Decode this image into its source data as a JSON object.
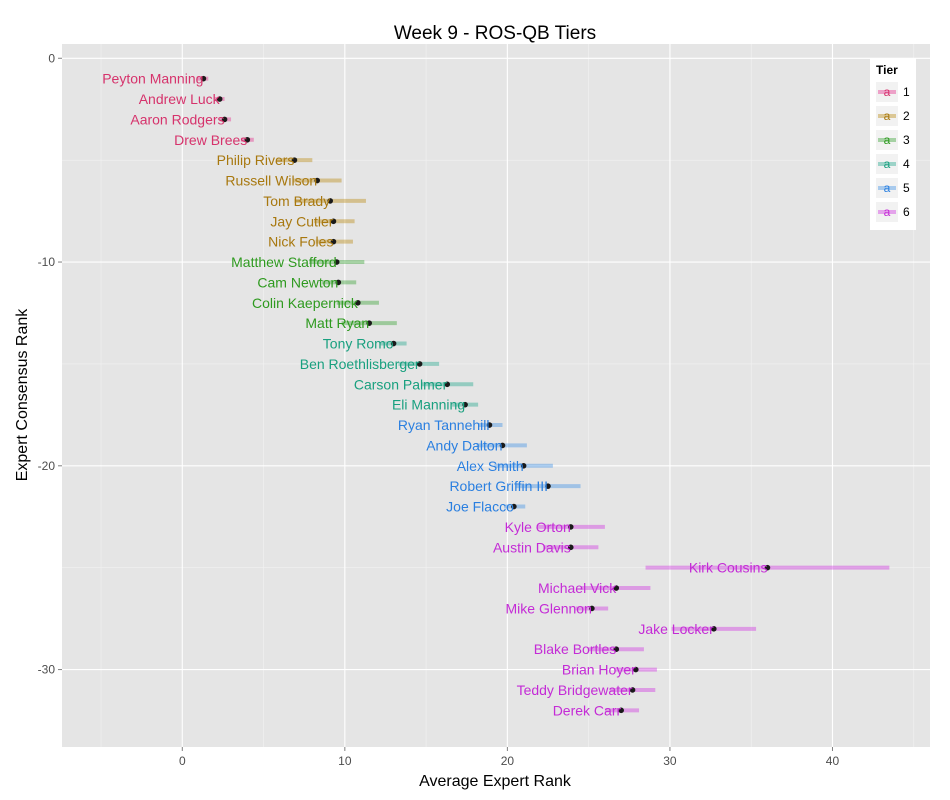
{
  "chart_data": {
    "type": "scatter",
    "title": "Week 9 - ROS-QB Tiers",
    "xlabel": "Average Expert Rank",
    "ylabel": "Expert Consensus Rank",
    "xlim": [
      -7.4,
      46.0
    ],
    "ylim": [
      -33.8,
      0.7
    ],
    "x_ticks": [
      0,
      10,
      20,
      30,
      40
    ],
    "x_tick_labels": [
      "0",
      "10",
      "20",
      "30",
      "40"
    ],
    "y_ticks": [
      0,
      -10,
      -20,
      -30
    ],
    "y_tick_labels": [
      "0",
      "-10",
      "-20",
      "-30"
    ],
    "grid": true,
    "legend": {
      "title": "Tier",
      "position": "top-right",
      "key_glyph": "a",
      "entries": [
        "1",
        "2",
        "3",
        "4",
        "5",
        "6"
      ]
    },
    "tier_colors": {
      "1": "#E7298A",
      "2": "#B8860B",
      "3": "#33A02C",
      "4": "#1BA68A",
      "5": "#3A8EE6",
      "6": "#D02CE0"
    },
    "label_colors": {
      "1": "#D6336C",
      "2": "#A8780F",
      "3": "#2E9A1F",
      "4": "#19A07F",
      "5": "#2A7FE0",
      "6": "#C42BD6"
    },
    "players": [
      {
        "name": "Peyton Manning",
        "rank": 1,
        "avg": 1.3,
        "low": 0.9,
        "high": 1.6,
        "tier": "1"
      },
      {
        "name": "Andrew Luck",
        "rank": 2,
        "avg": 2.3,
        "low": 2.0,
        "high": 2.6,
        "tier": "1"
      },
      {
        "name": "Aaron Rodgers",
        "rank": 3,
        "avg": 2.6,
        "low": 2.3,
        "high": 3.0,
        "tier": "1"
      },
      {
        "name": "Drew Brees",
        "rank": 4,
        "avg": 4.0,
        "low": 3.6,
        "high": 4.4,
        "tier": "1"
      },
      {
        "name": "Philip Rivers",
        "rank": 5,
        "avg": 6.9,
        "low": 5.8,
        "high": 8.0,
        "tier": "2"
      },
      {
        "name": "Russell Wilson",
        "rank": 6,
        "avg": 8.3,
        "low": 6.8,
        "high": 9.8,
        "tier": "2"
      },
      {
        "name": "Tom Brady",
        "rank": 7,
        "avg": 9.1,
        "low": 6.9,
        "high": 11.3,
        "tier": "2"
      },
      {
        "name": "Jay Cutler",
        "rank": 8,
        "avg": 9.3,
        "low": 8.1,
        "high": 10.6,
        "tier": "2"
      },
      {
        "name": "Nick Foles",
        "rank": 9,
        "avg": 9.3,
        "low": 8.2,
        "high": 10.5,
        "tier": "2"
      },
      {
        "name": "Matthew Stafford",
        "rank": 10,
        "avg": 9.5,
        "low": 7.8,
        "high": 11.2,
        "tier": "3"
      },
      {
        "name": "Cam Newton",
        "rank": 11,
        "avg": 9.6,
        "low": 8.6,
        "high": 10.7,
        "tier": "3"
      },
      {
        "name": "Colin Kaepernick",
        "rank": 12,
        "avg": 10.8,
        "low": 9.5,
        "high": 12.1,
        "tier": "3"
      },
      {
        "name": "Matt Ryan",
        "rank": 13,
        "avg": 11.5,
        "low": 9.8,
        "high": 13.2,
        "tier": "3"
      },
      {
        "name": "Tony Romo",
        "rank": 14,
        "avg": 13.0,
        "low": 12.2,
        "high": 13.8,
        "tier": "4"
      },
      {
        "name": "Ben Roethlisberger",
        "rank": 15,
        "avg": 14.6,
        "low": 13.3,
        "high": 15.8,
        "tier": "4"
      },
      {
        "name": "Carson Palmer",
        "rank": 16,
        "avg": 16.3,
        "low": 14.7,
        "high": 17.9,
        "tier": "4"
      },
      {
        "name": "Eli Manning",
        "rank": 17,
        "avg": 17.4,
        "low": 16.6,
        "high": 18.2,
        "tier": "4"
      },
      {
        "name": "Ryan Tannehill",
        "rank": 18,
        "avg": 18.9,
        "low": 18.2,
        "high": 19.7,
        "tier": "5"
      },
      {
        "name": "Andy Dalton",
        "rank": 19,
        "avg": 19.7,
        "low": 18.1,
        "high": 21.2,
        "tier": "5"
      },
      {
        "name": "Alex Smith",
        "rank": 20,
        "avg": 21.0,
        "low": 19.2,
        "high": 22.8,
        "tier": "5"
      },
      {
        "name": "Robert Griffin III",
        "rank": 21,
        "avg": 22.5,
        "low": 20.5,
        "high": 24.5,
        "tier": "5"
      },
      {
        "name": "Joe Flacco",
        "rank": 22,
        "avg": 20.4,
        "low": 19.8,
        "high": 21.1,
        "tier": "5"
      },
      {
        "name": "Kyle Orton",
        "rank": 23,
        "avg": 23.9,
        "low": 21.8,
        "high": 26.0,
        "tier": "6"
      },
      {
        "name": "Austin Davis",
        "rank": 24,
        "avg": 23.9,
        "low": 22.2,
        "high": 25.6,
        "tier": "6"
      },
      {
        "name": "Kirk Cousins",
        "rank": 25,
        "avg": 36.0,
        "low": 28.5,
        "high": 43.5,
        "tier": "6"
      },
      {
        "name": "Michael Vick",
        "rank": 26,
        "avg": 26.7,
        "low": 24.5,
        "high": 28.8,
        "tier": "6"
      },
      {
        "name": "Mike Glennon",
        "rank": 27,
        "avg": 25.2,
        "low": 24.2,
        "high": 26.2,
        "tier": "6"
      },
      {
        "name": "Jake Locker",
        "rank": 28,
        "avg": 32.7,
        "low": 30.1,
        "high": 35.3,
        "tier": "6"
      },
      {
        "name": "Blake Bortles",
        "rank": 29,
        "avg": 26.7,
        "low": 25.0,
        "high": 28.4,
        "tier": "6"
      },
      {
        "name": "Brian Hoyer",
        "rank": 30,
        "avg": 27.9,
        "low": 26.6,
        "high": 29.2,
        "tier": "6"
      },
      {
        "name": "Teddy Bridgewater",
        "rank": 31,
        "avg": 27.7,
        "low": 26.3,
        "high": 29.1,
        "tier": "6"
      },
      {
        "name": "Derek Carr",
        "rank": 32,
        "avg": 27.0,
        "low": 26.0,
        "high": 28.1,
        "tier": "6"
      }
    ]
  }
}
